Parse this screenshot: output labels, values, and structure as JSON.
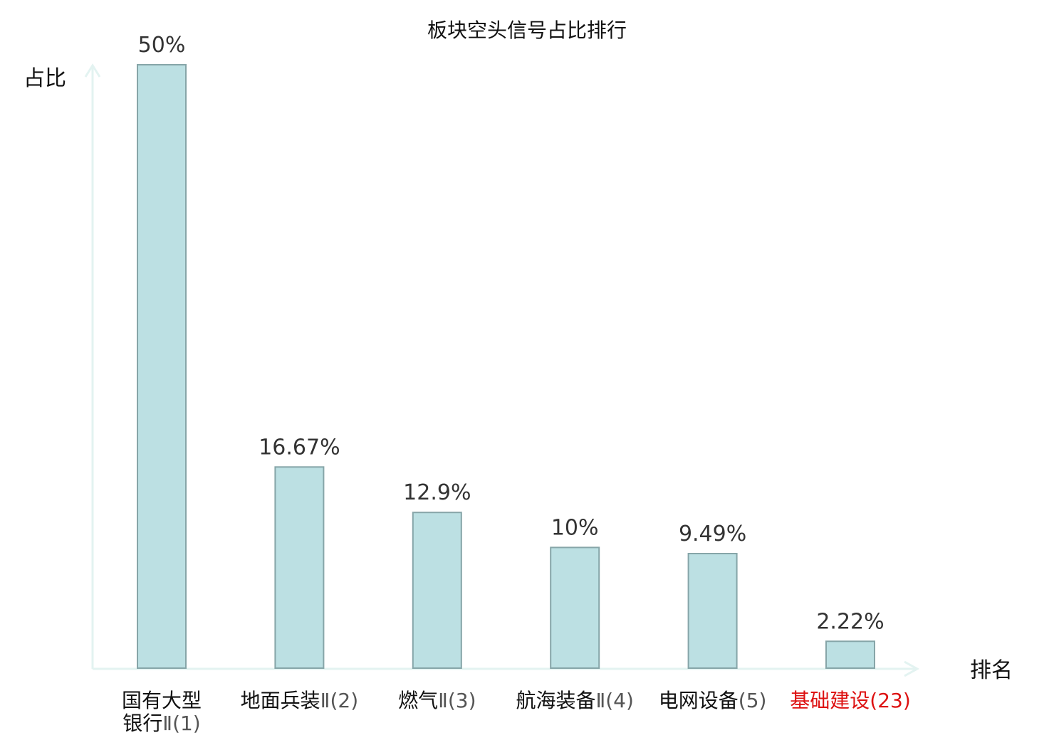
{
  "chart_data": {
    "type": "bar",
    "title": "板块空头信号占比排行",
    "ylabel": "占比",
    "xlabel": "排名",
    "ylim": [
      0,
      50
    ],
    "grid": false,
    "categories": [
      {
        "lines": [
          "国有大型",
          "银行Ⅱ(1)"
        ],
        "name_segments": [
          [
            "国有大型"
          ],
          [
            "银行",
            "Ⅱ(1)"
          ]
        ],
        "highlight": false
      },
      {
        "lines": [
          "地面兵装",
          "Ⅱ(2)"
        ],
        "name_segments": [
          [
            "地面兵装"
          ],
          [
            "",
            "Ⅱ(2)"
          ]
        ],
        "highlight": false
      },
      {
        "lines": [
          "燃气Ⅱ(3)"
        ],
        "name_segments": [
          [
            "燃气",
            "Ⅱ(3)"
          ]
        ],
        "highlight": false
      },
      {
        "lines": [
          "航海装备",
          "Ⅱ(4)"
        ],
        "name_segments": [
          [
            "航海装备"
          ],
          [
            "",
            "Ⅱ(4)"
          ]
        ],
        "highlight": false
      },
      {
        "lines": [
          "电网设备(5)"
        ],
        "name_segments": [
          [
            "电网设备",
            "(5)"
          ]
        ],
        "highlight": false
      },
      {
        "lines": [
          "基础建设(23)"
        ],
        "name_segments": [
          [
            "基础建设",
            "(23)"
          ]
        ],
        "highlight": true
      }
    ],
    "values": [
      50,
      16.67,
      12.9,
      10,
      9.49,
      2.22
    ],
    "value_labels": [
      "50%",
      "16.67%",
      "12.9%",
      "10%",
      "9.49%",
      "2.22%"
    ],
    "colors": {
      "bar_fill": "#bce0e3",
      "bar_stroke": "#86a5a8",
      "axis": "#e3f3f1",
      "label_dark": "#111111",
      "label_gray": "#555555",
      "highlight": "#dd1111"
    }
  }
}
